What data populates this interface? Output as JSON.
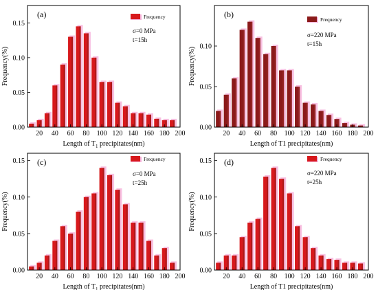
{
  "chart_data": [
    {
      "panel": "(a)",
      "type": "bar",
      "title": "",
      "xlabel": "Length  of  T",
      "xlabel_sub": "1",
      "xlabel_tail": " precipitates(nm)",
      "ylabel": "Frequency(%)",
      "legend": "Frequency",
      "legend_position": "top-right",
      "annotations": [
        "σ=0 MPa",
        "t=15h"
      ],
      "xlim": [
        5,
        200
      ],
      "ylim": [
        0,
        0.175
      ],
      "xticks": [
        20,
        40,
        60,
        80,
        100,
        120,
        140,
        160,
        180,
        200
      ],
      "yticks": [
        0.0,
        0.05,
        0.1,
        0.15
      ],
      "x": [
        10,
        20,
        30,
        40,
        50,
        60,
        70,
        80,
        90,
        100,
        110,
        120,
        130,
        140,
        150,
        160,
        170,
        180,
        190
      ],
      "values": [
        0.005,
        0.01,
        0.02,
        0.06,
        0.09,
        0.13,
        0.145,
        0.135,
        0.1,
        0.065,
        0.065,
        0.035,
        0.03,
        0.02,
        0.02,
        0.018,
        0.012,
        0.01,
        0.01
      ],
      "colors": {
        "bar": "#d7191c",
        "shade": "#8b1a1a",
        "halo": "#f7b6dd"
      }
    },
    {
      "panel": "(b)",
      "type": "bar",
      "title": "",
      "xlabel": "Length of T1 precipitates(nm)",
      "xlabel_sub": "",
      "xlabel_tail": "",
      "ylabel": "Frequency(%)",
      "legend": "Frequency",
      "legend_position": "top-right",
      "annotations": [
        "σ=220 MPa",
        "t=15h"
      ],
      "xlim": [
        5,
        200
      ],
      "ylim": [
        0,
        0.15
      ],
      "xticks": [
        20,
        40,
        60,
        80,
        100,
        120,
        140,
        160,
        180,
        200
      ],
      "yticks": [
        0.0,
        0.05,
        0.1
      ],
      "x": [
        10,
        20,
        30,
        40,
        50,
        60,
        70,
        80,
        90,
        100,
        110,
        120,
        130,
        140,
        150,
        160,
        170,
        180,
        190
      ],
      "values": [
        0.02,
        0.04,
        0.06,
        0.12,
        0.13,
        0.11,
        0.09,
        0.1,
        0.07,
        0.07,
        0.05,
        0.03,
        0.028,
        0.02,
        0.015,
        0.01,
        0.005,
        0.003,
        0.002
      ],
      "colors": {
        "bar": "#8b1a1a",
        "shade": "#a03030",
        "halo": "#f7b6dd"
      }
    },
    {
      "panel": "(c)",
      "type": "bar",
      "title": "",
      "xlabel": "Length  of  T",
      "xlabel_sub": "1",
      "xlabel_tail": " precipitates(nm)",
      "ylabel": "Frequency(%)",
      "legend": "Frequency",
      "legend_position": "top-right",
      "annotations": [
        "σ=0 MPa",
        "t=25h"
      ],
      "xlim": [
        5,
        200
      ],
      "ylim": [
        0,
        0.16
      ],
      "xticks": [
        20,
        40,
        60,
        80,
        100,
        120,
        140,
        160,
        180,
        200
      ],
      "yticks": [
        0.0,
        0.05,
        0.1,
        0.15
      ],
      "x": [
        10,
        20,
        30,
        40,
        50,
        60,
        70,
        80,
        90,
        100,
        110,
        120,
        130,
        140,
        150,
        160,
        170,
        180,
        190
      ],
      "values": [
        0.005,
        0.01,
        0.02,
        0.04,
        0.06,
        0.05,
        0.08,
        0.1,
        0.105,
        0.14,
        0.13,
        0.11,
        0.09,
        0.065,
        0.065,
        0.04,
        0.02,
        0.03,
        0.01
      ],
      "colors": {
        "bar": "#d7191c",
        "shade": "#8b1a1a",
        "halo": "#f7b6dd"
      }
    },
    {
      "panel": "(d)",
      "type": "bar",
      "title": "",
      "xlabel": "Length of T1 precipitates(nm)",
      "xlabel_sub": "",
      "xlabel_tail": "",
      "ylabel": "Frequency(%)",
      "legend": "Frequency",
      "legend_position": "top-right",
      "annotations": [
        "σ=220 MPa",
        "t=25h"
      ],
      "xlim": [
        5,
        200
      ],
      "ylim": [
        0,
        0.16
      ],
      "xticks": [
        20,
        40,
        60,
        80,
        100,
        120,
        140,
        160,
        180,
        200
      ],
      "yticks": [
        0.0,
        0.05,
        0.1,
        0.15
      ],
      "x": [
        10,
        20,
        30,
        40,
        50,
        60,
        70,
        80,
        90,
        100,
        110,
        120,
        130,
        140,
        150,
        160,
        170,
        180,
        190
      ],
      "values": [
        0.01,
        0.02,
        0.02,
        0.045,
        0.065,
        0.07,
        0.128,
        0.14,
        0.125,
        0.105,
        0.06,
        0.045,
        0.03,
        0.02,
        0.015,
        0.014,
        0.01,
        0.01,
        0.009
      ],
      "colors": {
        "bar": "#d7191c",
        "shade": "#8b1a1a",
        "halo": "#f7b6dd"
      }
    }
  ]
}
